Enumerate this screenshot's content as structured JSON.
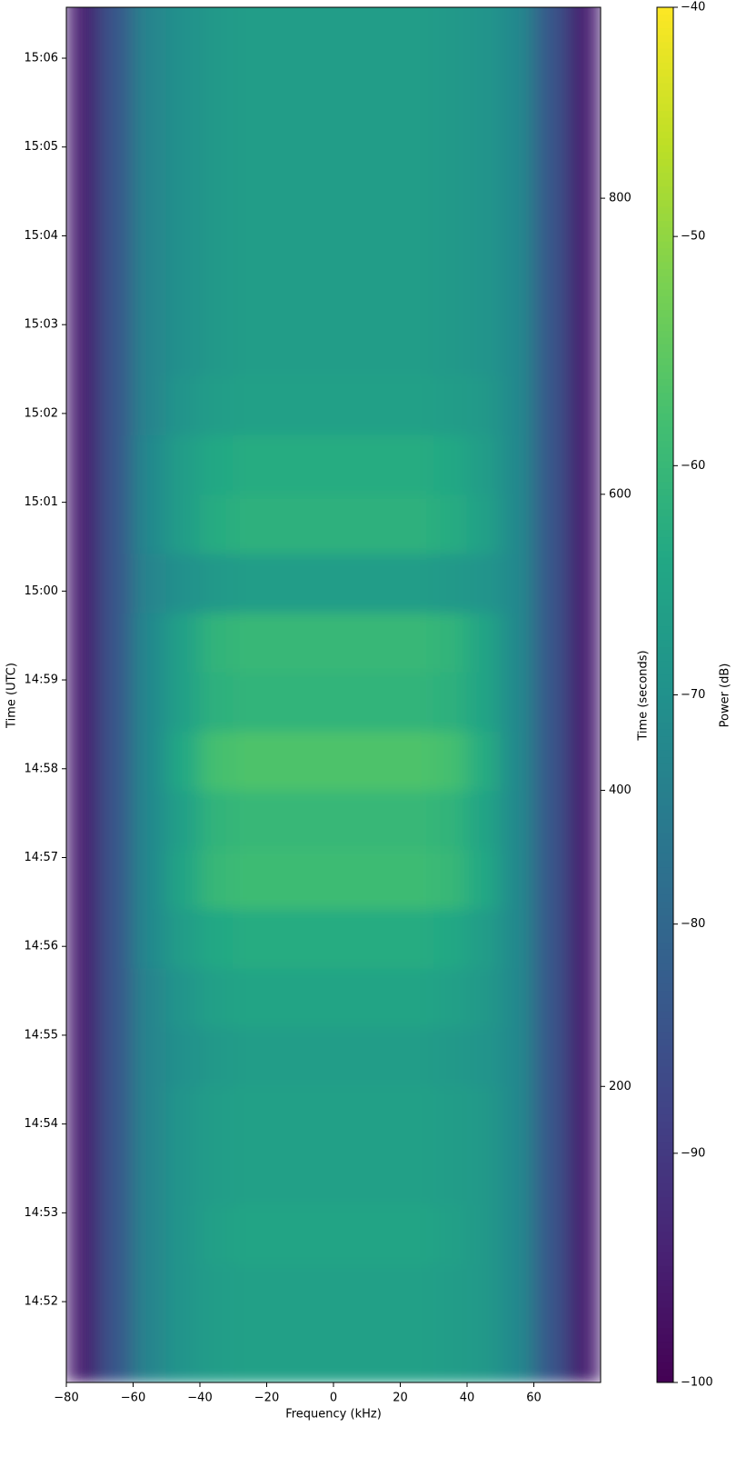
{
  "chart_data": {
    "type": "heatmap",
    "xlabel": "Frequency (kHz)",
    "ylabel": "Time (UTC)",
    "y2label": "Time (seconds)",
    "colorbar_label": "Power (dB)",
    "colormap": "viridis",
    "x": [
      -75,
      -65,
      -55,
      -45,
      -35,
      -25,
      -15,
      -5,
      5,
      15,
      25,
      35,
      45,
      55,
      65,
      75
    ],
    "y": [
      20,
      60,
      100,
      140,
      180,
      220,
      260,
      300,
      340,
      380,
      420,
      460,
      500,
      540,
      580,
      620,
      660,
      700,
      740,
      780,
      820,
      860,
      900,
      940
    ],
    "values": [
      [
        -95,
        -84,
        -73,
        -69,
        -67,
        -66,
        -66,
        -66,
        -66,
        -66,
        -66,
        -67,
        -68,
        -72,
        -84,
        -95
      ],
      [
        -95,
        -84,
        -73,
        -69,
        -67,
        -66,
        -66,
        -66,
        -66,
        -66,
        -66,
        -67,
        -68,
        -72,
        -84,
        -95
      ],
      [
        -95,
        -84,
        -73,
        -69,
        -66,
        -65,
        -65,
        -65,
        -65,
        -65,
        -65,
        -66,
        -68,
        -72,
        -84,
        -95
      ],
      [
        -95,
        -84,
        -73,
        -69,
        -67,
        -66,
        -66,
        -66,
        -66,
        -66,
        -66,
        -67,
        -68,
        -72,
        -84,
        -95
      ],
      [
        -95,
        -84,
        -73,
        -69,
        -67,
        -66,
        -66,
        -66,
        -66,
        -66,
        -66,
        -67,
        -68,
        -72,
        -84,
        -95
      ],
      [
        -95,
        -84,
        -73,
        -70,
        -68,
        -67,
        -67,
        -67,
        -67,
        -67,
        -67,
        -68,
        -69,
        -72,
        -84,
        -95
      ],
      [
        -95,
        -84,
        -73,
        -69,
        -66,
        -65,
        -65,
        -65,
        -65,
        -65,
        -65,
        -66,
        -68,
        -72,
        -84,
        -95
      ],
      [
        -95,
        -84,
        -72,
        -67,
        -64,
        -63,
        -63,
        -63,
        -63,
        -63,
        -63,
        -64,
        -67,
        -72,
        -84,
        -95
      ],
      [
        -95,
        -84,
        -72,
        -65,
        -60,
        -59,
        -59,
        -59,
        -59,
        -59,
        -59,
        -60,
        -64,
        -72,
        -84,
        -95
      ],
      [
        -95,
        -84,
        -72,
        -66,
        -61,
        -60,
        -60,
        -60,
        -60,
        -60,
        -60,
        -61,
        -65,
        -72,
        -84,
        -95
      ],
      [
        -95,
        -84,
        -72,
        -64,
        -58,
        -57,
        -57,
        -57,
        -57,
        -57,
        -57,
        -58,
        -63,
        -72,
        -84,
        -95
      ],
      [
        -95,
        -84,
        -72,
        -66,
        -62,
        -61,
        -61,
        -61,
        -61,
        -61,
        -61,
        -62,
        -65,
        -72,
        -84,
        -95
      ],
      [
        -95,
        -84,
        -72,
        -66,
        -61,
        -60,
        -60,
        -60,
        -60,
        -60,
        -60,
        -61,
        -65,
        -72,
        -84,
        -95
      ],
      [
        -95,
        -84,
        -73,
        -70,
        -68,
        -67,
        -67,
        -67,
        -67,
        -67,
        -67,
        -68,
        -69,
        -72,
        -84,
        -95
      ],
      [
        -95,
        -84,
        -72,
        -67,
        -63,
        -62,
        -62,
        -62,
        -62,
        -62,
        -62,
        -63,
        -66,
        -72,
        -84,
        -95
      ],
      [
        -95,
        -84,
        -72,
        -67,
        -64,
        -63,
        -63,
        -63,
        -63,
        -63,
        -63,
        -64,
        -67,
        -72,
        -84,
        -95
      ],
      [
        -95,
        -84,
        -73,
        -69,
        -67,
        -66,
        -66,
        -66,
        -66,
        -66,
        -66,
        -67,
        -68,
        -72,
        -84,
        -95
      ],
      [
        -95,
        -84,
        -73,
        -70,
        -68,
        -67,
        -67,
        -67,
        -67,
        -67,
        -67,
        -68,
        -69,
        -72,
        -84,
        -95
      ],
      [
        -95,
        -84,
        -73,
        -70,
        -68,
        -67,
        -67,
        -67,
        -67,
        -67,
        -67,
        -68,
        -69,
        -72,
        -84,
        -95
      ],
      [
        -95,
        -84,
        -73,
        -70,
        -68,
        -67,
        -67,
        -67,
        -67,
        -67,
        -67,
        -68,
        -69,
        -72,
        -84,
        -95
      ],
      [
        -95,
        -84,
        -73,
        -70,
        -68,
        -67,
        -67,
        -67,
        -67,
        -67,
        -67,
        -68,
        -69,
        -72,
        -84,
        -95
      ],
      [
        -95,
        -84,
        -73,
        -70,
        -68,
        -67,
        -67,
        -67,
        -67,
        -67,
        -67,
        -68,
        -69,
        -72,
        -84,
        -95
      ],
      [
        -95,
        -84,
        -73,
        -70,
        -68,
        -67,
        -67,
        -67,
        -67,
        -67,
        -67,
        -68,
        -69,
        -72,
        -84,
        -95
      ],
      [
        -95,
        -84,
        -73,
        -70,
        -68,
        -67,
        -67,
        -67,
        -67,
        -67,
        -67,
        -68,
        -69,
        -72,
        -84,
        -95
      ]
    ],
    "xlim": [
      -80,
      80
    ],
    "xticks": [
      {
        "value": -80,
        "label": "−80"
      },
      {
        "value": -60,
        "label": "−60"
      },
      {
        "value": -40,
        "label": "−40"
      },
      {
        "value": -20,
        "label": "−20"
      },
      0,
      20,
      40,
      60
    ],
    "ylim": [
      0,
      929
    ],
    "yticks": [
      {
        "value": 54.6,
        "label": "14:52"
      },
      {
        "value": 114.6,
        "label": "14:53"
      },
      {
        "value": 174.6,
        "label": "14:54"
      },
      {
        "value": 234.6,
        "label": "14:55"
      },
      {
        "value": 294.6,
        "label": "14:56"
      },
      {
        "value": 354.6,
        "label": "14:57"
      },
      {
        "value": 414.6,
        "label": "14:58"
      },
      {
        "value": 474.6,
        "label": "14:59"
      },
      {
        "value": 534.6,
        "label": "15:00"
      },
      {
        "value": 594.6,
        "label": "15:01"
      },
      {
        "value": 654.6,
        "label": "15:02"
      },
      {
        "value": 714.6,
        "label": "15:03"
      },
      {
        "value": 774.6,
        "label": "15:04"
      },
      {
        "value": 834.6,
        "label": "15:05"
      },
      {
        "value": 894.6,
        "label": "15:06"
      }
    ],
    "y2lim": [
      0,
      929
    ],
    "y2ticks": [
      200,
      400,
      600,
      800
    ],
    "clim": [
      -100,
      -40
    ],
    "cticks": [
      {
        "value": -100,
        "label": "−100"
      },
      {
        "value": -90,
        "label": "−90"
      },
      {
        "value": -80,
        "label": "−80"
      },
      {
        "value": -70,
        "label": "−70"
      },
      {
        "value": -60,
        "label": "−60"
      },
      {
        "value": -50,
        "label": "−50"
      },
      {
        "value": -40,
        "label": "−40"
      }
    ]
  }
}
